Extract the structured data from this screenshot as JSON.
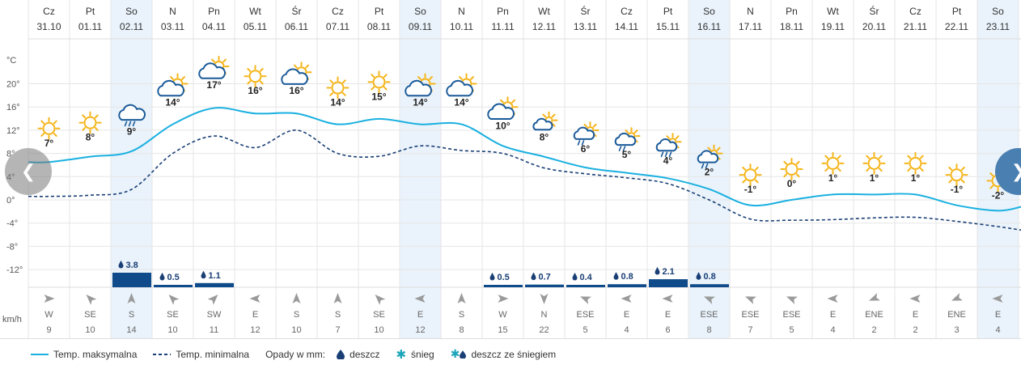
{
  "days": [
    {
      "day": "Cz",
      "date": "31.10",
      "max": 7,
      "min": 0.6,
      "icon": "sun-icon",
      "precip": null,
      "wind_dir": "W",
      "wind_speed": 9
    },
    {
      "day": "Pt",
      "date": "01.11",
      "max": 8,
      "min": 0.8,
      "icon": "sun-icon",
      "precip": null,
      "wind_dir": "SE",
      "wind_speed": 10
    },
    {
      "day": "So",
      "date": "02.11",
      "max": 9,
      "min": 1.8,
      "icon": "rain-cloud-icon",
      "precip": "3.8",
      "wind_dir": "S",
      "wind_speed": 14
    },
    {
      "day": "N",
      "date": "03.11",
      "max": 14,
      "min": 8,
      "icon": "cloud-sun-icon",
      "precip": "0.5",
      "wind_dir": "SE",
      "wind_speed": 10
    },
    {
      "day": "Pn",
      "date": "04.11",
      "max": 17,
      "min": 11,
      "icon": "cloud-sun-icon",
      "precip": "1.1",
      "wind_dir": "SW",
      "wind_speed": 11
    },
    {
      "day": "Wt",
      "date": "05.11",
      "max": 16,
      "min": 9,
      "icon": "sun-icon",
      "precip": null,
      "wind_dir": "E",
      "wind_speed": 12
    },
    {
      "day": "Śr",
      "date": "06.11",
      "max": 16,
      "min": 12,
      "icon": "cloud-sun-icon",
      "precip": null,
      "wind_dir": "S",
      "wind_speed": 10
    },
    {
      "day": "Cz",
      "date": "07.11",
      "max": 14,
      "min": 8,
      "icon": "sun-icon",
      "precip": null,
      "wind_dir": "S",
      "wind_speed": 7
    },
    {
      "day": "Pt",
      "date": "08.11",
      "max": 15,
      "min": 7.5,
      "icon": "sun-icon",
      "precip": null,
      "wind_dir": "SE",
      "wind_speed": 10
    },
    {
      "day": "So",
      "date": "09.11",
      "max": 14,
      "min": 9.3,
      "icon": "cloud-sun-icon",
      "precip": null,
      "wind_dir": "E",
      "wind_speed": 12
    },
    {
      "day": "N",
      "date": "10.11",
      "max": 14,
      "min": 8.5,
      "icon": "cloud-sun-icon",
      "precip": null,
      "wind_dir": "S",
      "wind_speed": 8
    },
    {
      "day": "Pn",
      "date": "11.11",
      "max": 10,
      "min": 8,
      "icon": "cloud-sun-icon",
      "precip": "0.5",
      "wind_dir": "W",
      "wind_speed": 15
    },
    {
      "day": "Wt",
      "date": "12.11",
      "max": 8,
      "min": 5.5,
      "icon": "cloud-sun-small-icon",
      "precip": "0.7",
      "wind_dir": "N",
      "wind_speed": 22
    },
    {
      "day": "Śr",
      "date": "13.11",
      "max": 6,
      "min": 4.5,
      "icon": "rain-cloud-sun-icon",
      "precip": "0.4",
      "wind_dir": "ESE",
      "wind_speed": 5
    },
    {
      "day": "Cz",
      "date": "14.11",
      "max": 5,
      "min": 3.8,
      "icon": "rain-cloud-sun-icon",
      "precip": "0.8",
      "wind_dir": "E",
      "wind_speed": 4
    },
    {
      "day": "Pt",
      "date": "15.11",
      "max": 4,
      "min": 2.8,
      "icon": "heavy-rain-cloud-sun-icon",
      "precip": "2.1",
      "wind_dir": "E",
      "wind_speed": 6
    },
    {
      "day": "So",
      "date": "16.11",
      "max": 2,
      "min": 0,
      "icon": "rain-cloud-sun-icon",
      "precip": "0.8",
      "wind_dir": "ESE",
      "wind_speed": 8
    },
    {
      "day": "N",
      "date": "17.11",
      "max": -1,
      "min": -3.3,
      "icon": "sun-icon",
      "precip": null,
      "wind_dir": "ESE",
      "wind_speed": 7
    },
    {
      "day": "Pn",
      "date": "18.11",
      "max": 0,
      "min": -3.5,
      "icon": "sun-icon",
      "precip": null,
      "wind_dir": "ESE",
      "wind_speed": 5
    },
    {
      "day": "Wt",
      "date": "19.11",
      "max": 1,
      "min": -3.4,
      "icon": "sun-icon",
      "precip": null,
      "wind_dir": "E",
      "wind_speed": 4
    },
    {
      "day": "Śr",
      "date": "20.11",
      "max": 1,
      "min": -3.1,
      "icon": "sun-icon",
      "precip": null,
      "wind_dir": "ENE",
      "wind_speed": 2
    },
    {
      "day": "Cz",
      "date": "21.11",
      "max": 1,
      "min": -3,
      "icon": "sun-icon",
      "precip": null,
      "wind_dir": "E",
      "wind_speed": 2
    },
    {
      "day": "Pt",
      "date": "22.11",
      "max": -1,
      "min": -3.7,
      "icon": "sun-icon",
      "precip": null,
      "wind_dir": "ENE",
      "wind_speed": 3
    },
    {
      "day": "So",
      "date": "23.11",
      "max": -2,
      "min": -4.6,
      "icon": "sun-icon",
      "precip": null,
      "wind_dir": "E",
      "wind_speed": 4
    }
  ],
  "weekend_indices": [
    2,
    9,
    16,
    23
  ],
  "temp_axis": {
    "unit": "°C",
    "ticks": [
      20,
      16,
      12,
      8,
      4,
      0,
      -4,
      -8,
      -12
    ],
    "tick_labels": [
      "20°",
      "16°",
      "12°",
      "8°",
      "4°",
      "0°",
      "-4°",
      "-8°",
      "-12°"
    ],
    "min": -12,
    "max": 20
  },
  "wind_unit": "km/h",
  "legend": {
    "max_label": "Temp. maksymalna",
    "min_label": "Temp. minimalna",
    "precip_label": "Opady w mm:",
    "rain_label": "deszcz",
    "snow_label": "śnieg",
    "mixed_label": "deszcz ze śniegiem"
  },
  "colors": {
    "max_line": "#1ab0e0",
    "min_line": "#1a3f75",
    "precip_bar": "#0f4a8a",
    "weekend_bg": "#eaf3fb",
    "sun": "#f5b51a",
    "cloud": "#1a5a99"
  }
}
